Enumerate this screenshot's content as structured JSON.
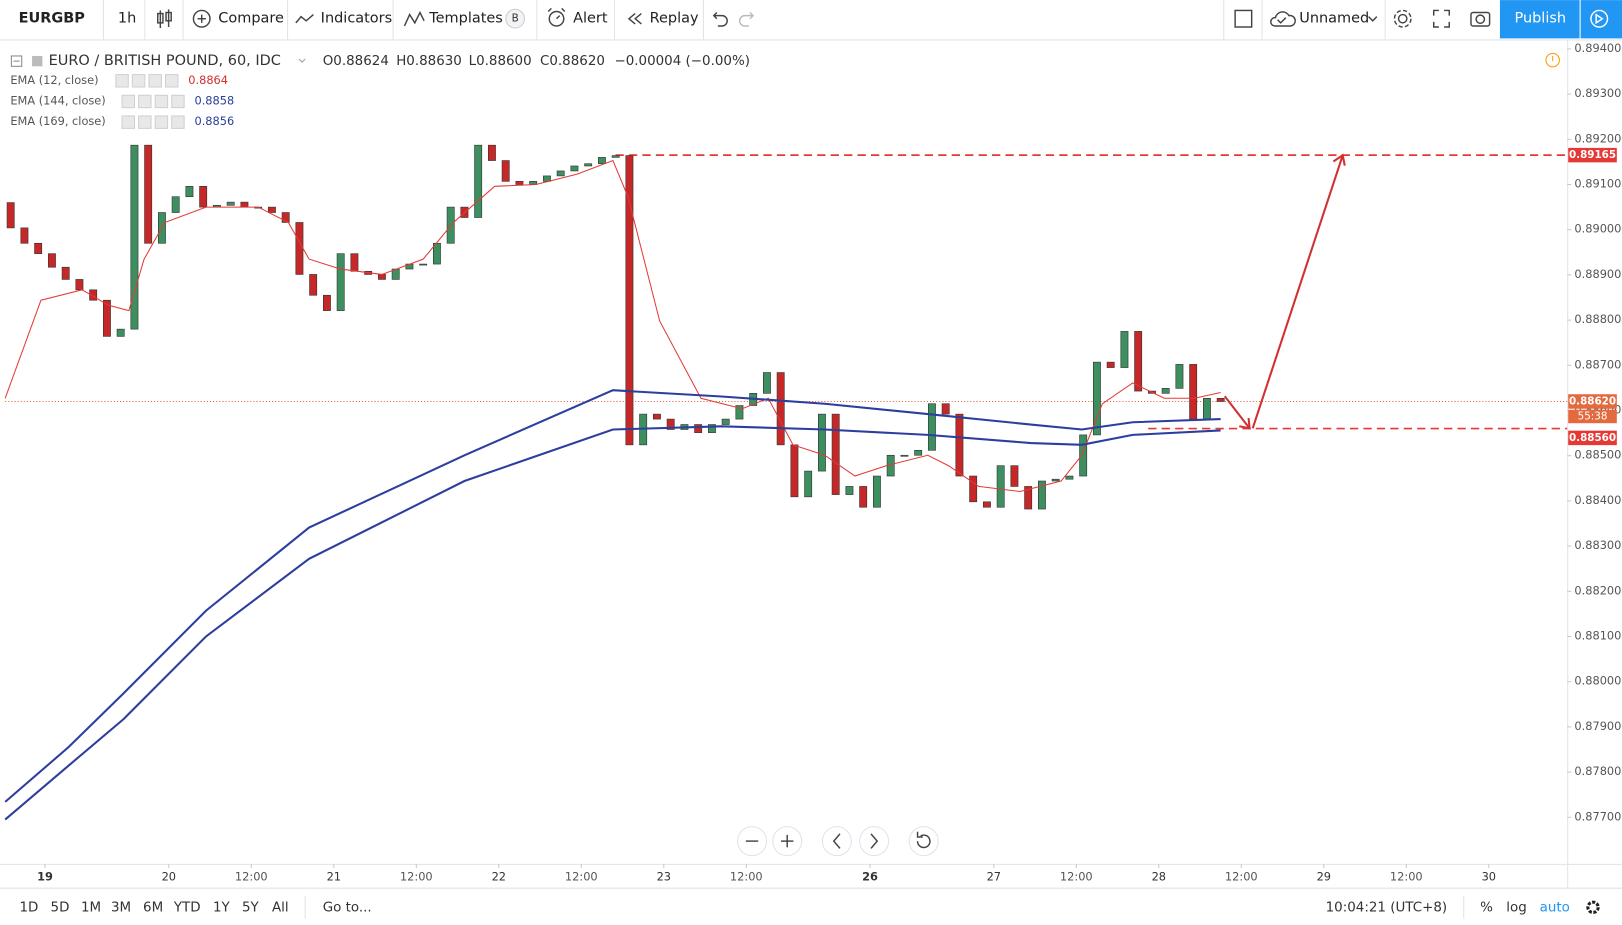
{
  "toolbar": {
    "symbol": "EURGBP",
    "interval": "1h",
    "compare": "Compare",
    "indicators": "Indicators",
    "templates": "Templates",
    "templates_badge": "B",
    "alert": "Alert",
    "replay": "Replay",
    "layout_name": "Unnamed",
    "publish": "Publish"
  },
  "legend": {
    "title": "EURO / BRITISH POUND, 60, IDC",
    "open": "O0.88624",
    "high": "H0.88630",
    "low": "L0.88600",
    "close": "C0.88620",
    "change": "−0.00004 (−0.00%)",
    "studies": [
      {
        "name": "EMA (12, close)",
        "value": 0.8864,
        "color": "#d32f2f"
      },
      {
        "name": "EMA (144, close)",
        "value": 0.8858,
        "color": "#2a3f9d"
      },
      {
        "name": "EMA (169, close)",
        "value": 0.8856,
        "color": "#2a3f9d"
      }
    ]
  },
  "chart": {
    "type": "candlestick",
    "up_color": "#3d8f60",
    "down_color": "#c62828",
    "xlim": [
      -0.4,
      113.2
    ],
    "ylim": [
      0.87597,
      0.89421
    ],
    "yticks": [
      {
        "value": 0.894,
        "label": "0.89400"
      },
      {
        "value": 0.893,
        "label": "0.89300"
      },
      {
        "value": 0.892,
        "label": "0.89200"
      },
      {
        "value": 0.891,
        "label": "0.89100"
      },
      {
        "value": 0.89,
        "label": "0.89000"
      },
      {
        "value": 0.889,
        "label": "0.88900"
      },
      {
        "value": 0.888,
        "label": "0.88800"
      },
      {
        "value": 0.887,
        "label": "0.88700"
      },
      {
        "value": 0.886,
        "label": "0.88600"
      },
      {
        "value": 0.885,
        "label": "0.88500"
      },
      {
        "value": 0.884,
        "label": "0.88400"
      },
      {
        "value": 0.883,
        "label": "0.88300"
      },
      {
        "value": 0.882,
        "label": "0.88200"
      },
      {
        "value": 0.881,
        "label": "0.88100"
      },
      {
        "value": 0.88,
        "label": "0.88000"
      },
      {
        "value": 0.879,
        "label": "0.87900"
      },
      {
        "value": 0.878,
        "label": "0.87800"
      },
      {
        "value": 0.877,
        "label": "0.87700"
      }
    ],
    "xticks": [
      {
        "value": 2.5,
        "label": "19"
      },
      {
        "value": 11.5,
        "label": "20"
      },
      {
        "value": 17.5,
        "label": "12:00"
      },
      {
        "value": 23.5,
        "label": "21"
      },
      {
        "value": 29.5,
        "label": "12:00"
      },
      {
        "value": 35.5,
        "label": "22"
      },
      {
        "value": 41.5,
        "label": "12:00"
      },
      {
        "value": 47.5,
        "label": "23"
      },
      {
        "value": 53.5,
        "label": "12:00"
      },
      {
        "value": 62.5,
        "label": "26"
      },
      {
        "value": 71.5,
        "label": "27"
      },
      {
        "value": 77.5,
        "label": "12:00"
      },
      {
        "value": 83.5,
        "label": "28"
      },
      {
        "value": 89.5,
        "label": "12:00"
      },
      {
        "value": 95.5,
        "label": "29"
      },
      {
        "value": 101.5,
        "label": "12:00"
      },
      {
        "value": 107.5,
        "label": "30"
      }
    ],
    "first_open": 0.8906,
    "close": [
      0.89004,
      0.8897,
      0.88947,
      0.88917,
      0.8889,
      0.88867,
      0.88844,
      0.88764,
      0.8878,
      0.89187,
      0.8897,
      0.89038,
      0.89073,
      0.89096,
      0.8905,
      0.89054,
      0.89061,
      0.8905,
      0.8905,
      0.89038,
      0.89016,
      0.88901,
      0.88855,
      0.88821,
      0.88947,
      0.88908,
      0.88901,
      0.8889,
      0.88913,
      0.88924,
      0.88924,
      0.8897,
      0.8905,
      0.89027,
      0.89187,
      0.89153,
      0.89107,
      0.891,
      0.89107,
      0.89119,
      0.8913,
      0.89141,
      0.89146,
      0.8916,
      0.89164,
      0.88524,
      0.88592,
      0.88581,
      0.88558,
      0.88569,
      0.88551,
      0.88569,
      0.88581,
      0.88611,
      0.88638,
      0.88684,
      0.88524,
      0.88409,
      0.88466,
      0.88592,
      0.88414,
      0.88432,
      0.88386,
      0.88455,
      0.88501,
      0.88501,
      0.88512,
      0.88615,
      0.88592,
      0.88455,
      0.88398,
      0.88386,
      0.88478,
      0.88432,
      0.88382,
      0.88444,
      0.88448,
      0.88455,
      0.88546,
      0.88707,
      0.88695,
      0.88775,
      0.88643,
      0.88638,
      0.88649,
      0.88702,
      0.88581,
      0.88627,
      0.8862
    ],
    "ema_lines": [
      {
        "color": "#e53935",
        "width": 1,
        "x": [
          -0.4,
          2.2,
          5.2,
          7.1,
          8.6,
          9.7,
          11.2,
          14.2,
          18.0,
          20.2,
          21.7,
          24.0,
          27.0,
          30.0,
          32.2,
          35.2,
          38.2,
          41.2,
          43.8,
          44.9,
          47.2,
          50.2,
          53.2,
          55.1,
          56.9,
          59.2,
          61.4,
          63.7,
          66.7,
          68.2,
          70.4,
          73.4,
          76.4,
          77.9,
          79.4,
          81.6,
          83.9,
          86.1,
          88.0
        ],
        "values": [
          0.88627,
          0.88844,
          0.88867,
          0.88833,
          0.88821,
          0.88935,
          0.89016,
          0.8905,
          0.8905,
          0.89016,
          0.88935,
          0.88913,
          0.88901,
          0.88935,
          0.89016,
          0.89096,
          0.891,
          0.89123,
          0.89153,
          0.89073,
          0.88798,
          0.88627,
          0.88604,
          0.88627,
          0.88524,
          0.88501,
          0.88455,
          0.88478,
          0.88501,
          0.88478,
          0.88432,
          0.88421,
          0.88444,
          0.88501,
          0.88615,
          0.88661,
          0.88627,
          0.88627,
          0.8864
        ]
      },
      {
        "color": "#2c3e9e",
        "width": 2,
        "x": [
          -0.4,
          4.2,
          8.2,
          14.2,
          21.7,
          33.0,
          43.8,
          51.7,
          59.2,
          66.7,
          74.2,
          77.9,
          81.6,
          88.0
        ],
        "values": [
          0.87734,
          0.87855,
          0.87974,
          0.88157,
          0.88341,
          0.88501,
          0.88645,
          0.88631,
          0.88615,
          0.88592,
          0.88569,
          0.88558,
          0.88574,
          0.88581
        ]
      },
      {
        "color": "#2c3e9e",
        "width": 2,
        "x": [
          -0.4,
          4.2,
          8.2,
          14.2,
          21.7,
          33.0,
          43.8,
          51.7,
          59.2,
          66.7,
          74.2,
          77.9,
          81.6,
          88.0
        ],
        "values": [
          0.87695,
          0.87814,
          0.87917,
          0.881,
          0.88272,
          0.88444,
          0.88558,
          0.88565,
          0.88558,
          0.88546,
          0.88528,
          0.88524,
          0.88546,
          0.88556
        ]
      }
    ],
    "target_line": {
      "value": 0.89165,
      "label": "0.89165"
    },
    "support_line": {
      "value": 0.8856,
      "label": "0.88560"
    },
    "last_price": {
      "value": 0.8862,
      "label": "0.88620",
      "countdown": "55:38"
    }
  },
  "bottom_bar": {
    "ranges": [
      "1D",
      "5D",
      "1M",
      "3M",
      "6M",
      "YTD",
      "1Y",
      "5Y",
      "All"
    ],
    "goto": "Go to...",
    "clock": "10:04:21 (UTC+8)",
    "percent": "%",
    "log": "log",
    "auto": "auto"
  }
}
